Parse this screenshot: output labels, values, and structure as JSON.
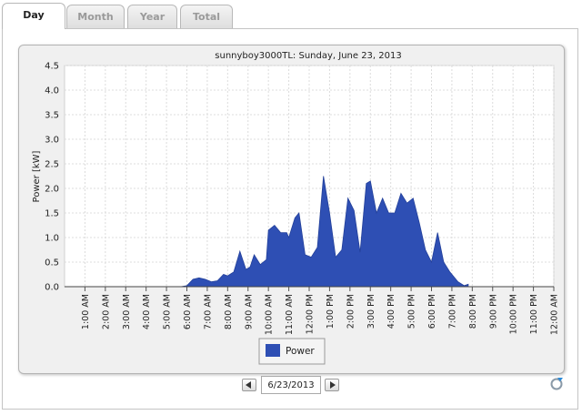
{
  "tabs": [
    {
      "label": "Day",
      "active": true
    },
    {
      "label": "Month",
      "active": false
    },
    {
      "label": "Year",
      "active": false
    },
    {
      "label": "Total",
      "active": false
    }
  ],
  "date_selector": {
    "value": "6/23/2013"
  },
  "chart_data": {
    "type": "area",
    "title": "sunnyboy3000TL: Sunday, June 23, 2013",
    "ylabel": "Power [kW]",
    "xlabel": "",
    "ylim": [
      0,
      4.5
    ],
    "yticks": [
      "0.0",
      "0.5",
      "1.0",
      "1.5",
      "2.0",
      "2.5",
      "3.0",
      "3.5",
      "4.0",
      "4.5"
    ],
    "xticks": [
      "1:00 AM",
      "2:00 AM",
      "3:00 AM",
      "4:00 AM",
      "5:00 AM",
      "6:00 AM",
      "7:00 AM",
      "8:00 AM",
      "9:00 AM",
      "10:00 AM",
      "11:00 AM",
      "12:00 PM",
      "1:00 PM",
      "2:00 PM",
      "3:00 PM",
      "4:00 PM",
      "5:00 PM",
      "6:00 PM",
      "7:00 PM",
      "8:00 PM",
      "9:00 PM",
      "10:00 PM",
      "11:00 PM",
      "12:00 AM"
    ],
    "grid": true,
    "legend_position": "bottom-center",
    "series": [
      {
        "name": "Power",
        "color": "#2e4fb4",
        "x": [
          0,
          5.5,
          5.7,
          6.0,
          6.3,
          6.6,
          6.9,
          7.2,
          7.5,
          7.8,
          8.0,
          8.3,
          8.6,
          8.9,
          9.1,
          9.3,
          9.6,
          9.9,
          10.0,
          10.3,
          10.6,
          10.9,
          11.0,
          11.3,
          11.5,
          11.8,
          12.1,
          12.4,
          12.7,
          13.0,
          13.3,
          13.6,
          13.9,
          14.2,
          14.5,
          14.8,
          15.0,
          15.3,
          15.6,
          15.9,
          16.2,
          16.5,
          16.8,
          17.1,
          17.4,
          17.7,
          18.0,
          18.3,
          18.6,
          18.9,
          19.3,
          19.6,
          19.8
        ],
        "values": [
          0,
          0,
          0,
          0.02,
          0.15,
          0.18,
          0.15,
          0.1,
          0.12,
          0.25,
          0.22,
          0.3,
          0.72,
          0.35,
          0.4,
          0.65,
          0.45,
          0.55,
          1.15,
          1.25,
          1.1,
          1.1,
          1.0,
          1.4,
          1.5,
          0.65,
          0.6,
          0.8,
          2.25,
          1.5,
          0.6,
          0.75,
          1.8,
          1.55,
          0.7,
          2.1,
          2.15,
          1.5,
          1.8,
          1.5,
          1.5,
          1.9,
          1.7,
          1.8,
          1.3,
          0.75,
          0.5,
          1.1,
          0.5,
          0.3,
          0.1,
          0.02,
          0.05
        ]
      }
    ]
  }
}
